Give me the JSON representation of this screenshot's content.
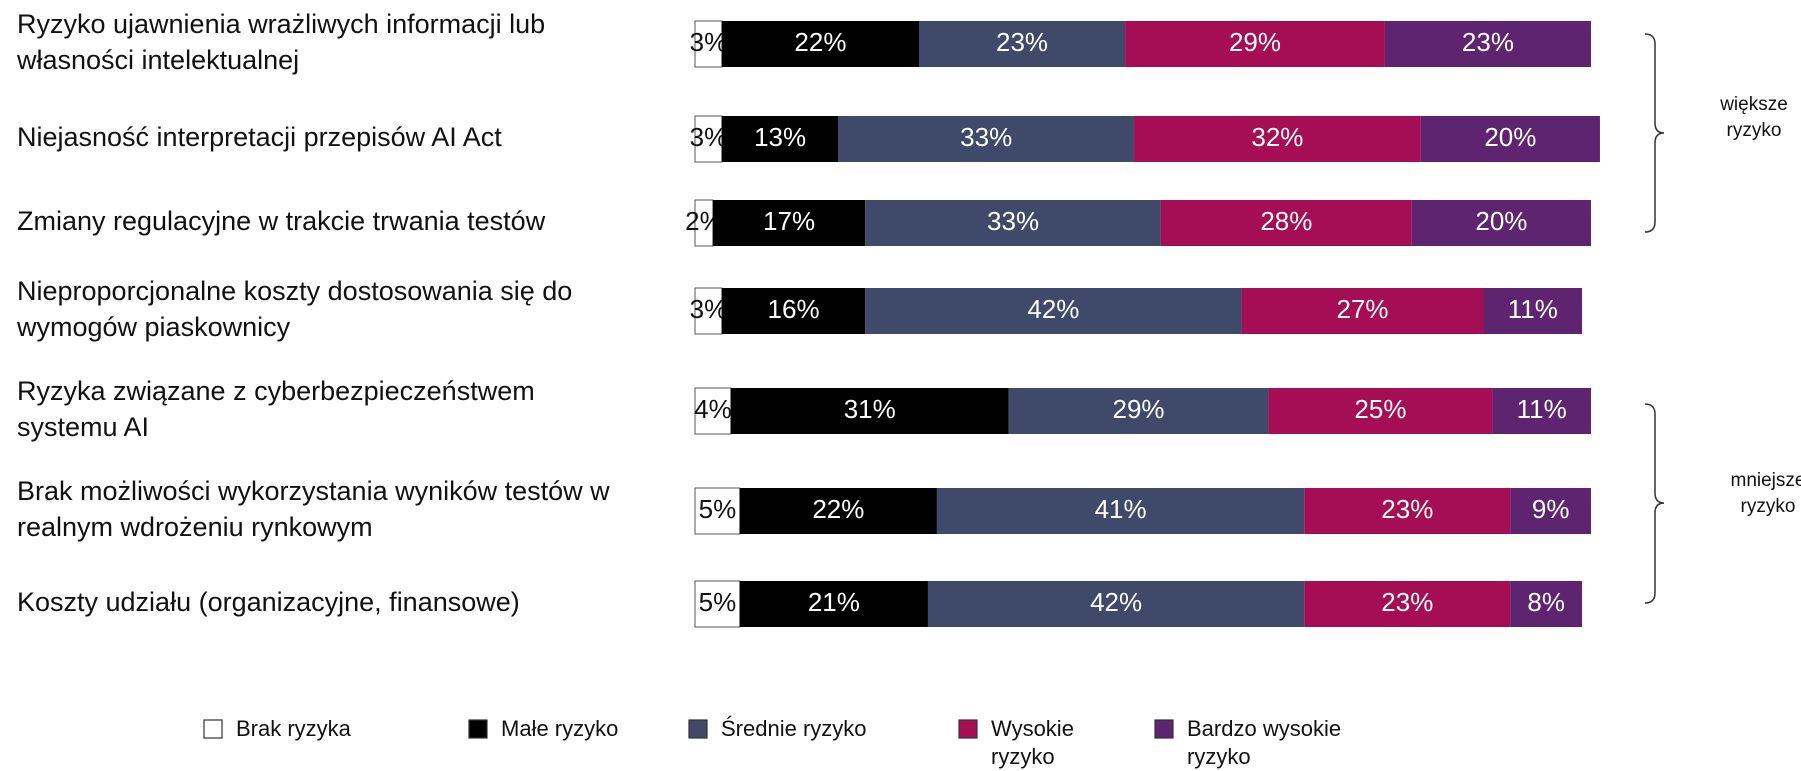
{
  "chart_data": {
    "type": "stacked-bar-horizontal",
    "categories": [
      "Ryzyko ujawnienia wrażliwych informacji lub\nwłasności intelektualnej",
      "Niejasność interpretacji przepisów AI Act",
      "Zmiany regulacyjne w trakcie trwania testów",
      "Nieproporcjonalne koszty dostosowania się do\nwymogów piaskownicy",
      "Ryzyka związane z cyberbezpieczeństwem\nsystemu AI",
      "Brak możliwości wykorzystania wyników testów w\nrealnym wdrożeniu rynkowym",
      "Koszty udziału (organizacyjne, finansowe)"
    ],
    "series": [
      {
        "name": "Brak ryzyka",
        "color": "#ffffff",
        "values": [
          3,
          3,
          2,
          3,
          4,
          5,
          5
        ],
        "value_labels": [
          "3%",
          "3%",
          "2%",
          "3%",
          "4%",
          "5%",
          "5%"
        ]
      },
      {
        "name": "Małe ryzyko",
        "color": "#000000",
        "values": [
          22,
          13,
          17,
          16,
          31,
          22,
          21
        ],
        "value_labels": [
          "22%",
          "13%",
          "17%",
          "16%",
          "31%",
          "22%",
          "21%"
        ]
      },
      {
        "name": "Średnie ryzyko",
        "color": "#3f4a6b",
        "values": [
          23,
          33,
          33,
          42,
          29,
          41,
          42
        ],
        "value_labels": [
          "23%",
          "33%",
          "33%",
          "42%",
          "29%",
          "41%",
          "42%"
        ]
      },
      {
        "name": "Wysokie\nryzyko",
        "color": "#a50d55",
        "values": [
          29,
          32,
          28,
          27,
          25,
          23,
          23
        ],
        "value_labels": [
          "29%",
          "32%",
          "28%",
          "27%",
          "25%",
          "23%",
          "23%"
        ]
      },
      {
        "name": "Bardzo wysokie\nryzyko",
        "color": "#5e2470",
        "values": [
          23,
          20,
          20,
          11,
          11,
          9,
          8
        ],
        "value_labels": [
          "23%",
          "20%",
          "20%",
          "11%",
          "11%",
          "9%",
          "8%"
        ]
      }
    ],
    "annotations": [
      "większe\nryzyko",
      "mniejsze\nryzyko"
    ],
    "xlim": [
      0,
      100
    ]
  }
}
